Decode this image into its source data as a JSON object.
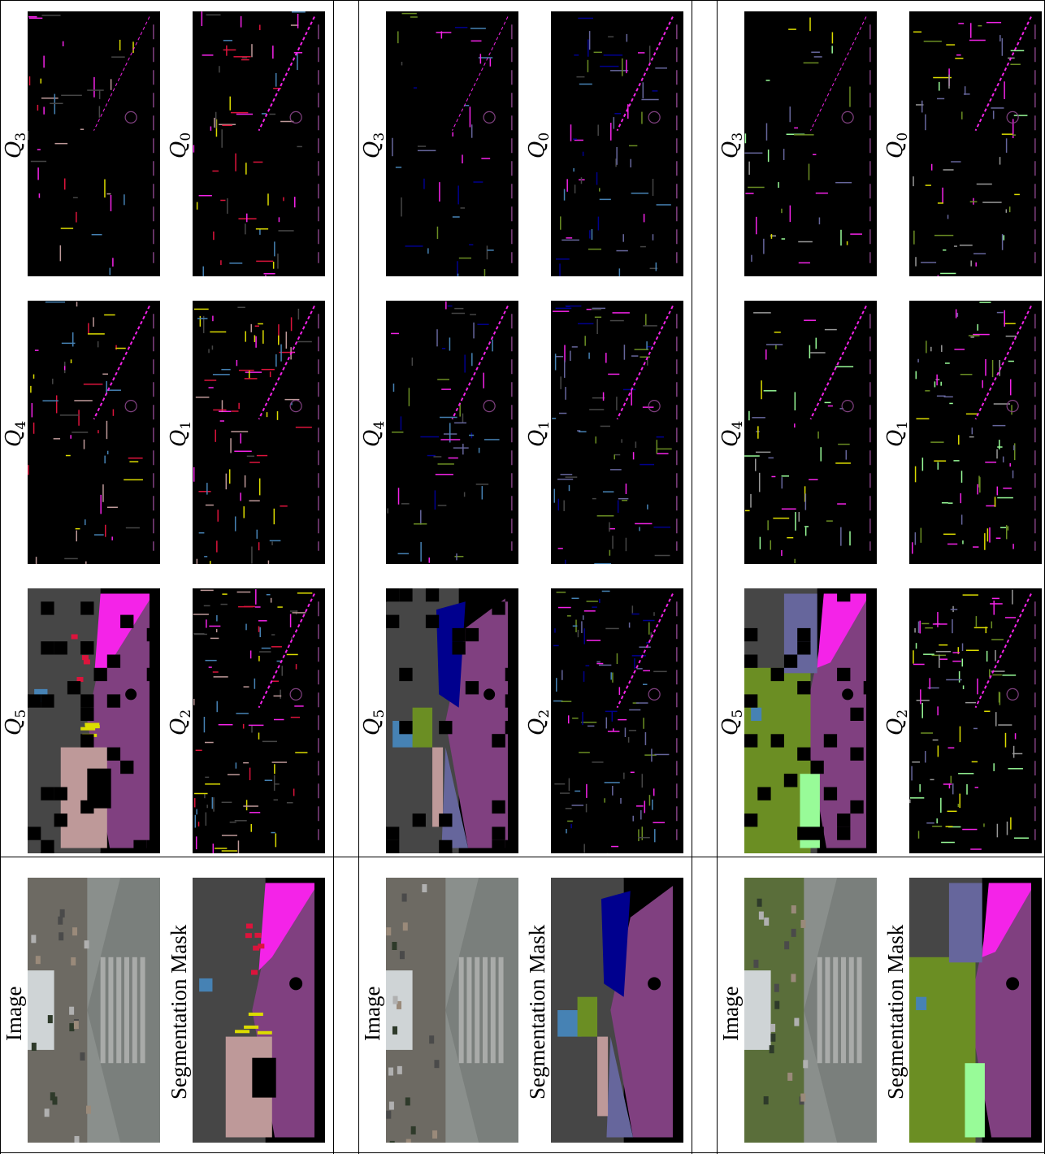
{
  "columns": [
    {
      "image_label": "Image",
      "mask_label": "Segmentation Mask",
      "q_labels": [
        {
          "letter": "Q",
          "sub": "5"
        },
        {
          "letter": "Q",
          "sub": "4"
        },
        {
          "letter": "Q",
          "sub": "3"
        },
        {
          "letter": "Q",
          "sub": "2"
        },
        {
          "letter": "Q",
          "sub": "1"
        },
        {
          "letter": "Q",
          "sub": "0"
        }
      ]
    },
    {
      "image_label": "Image",
      "mask_label": "Segmentation Mask",
      "q_labels": [
        {
          "letter": "Q",
          "sub": "5"
        },
        {
          "letter": "Q",
          "sub": "4"
        },
        {
          "letter": "Q",
          "sub": "3"
        },
        {
          "letter": "Q",
          "sub": "2"
        },
        {
          "letter": "Q",
          "sub": "1"
        },
        {
          "letter": "Q",
          "sub": "0"
        }
      ]
    },
    {
      "image_label": "Image",
      "mask_label": "Segmentation Mask",
      "q_labels": [
        {
          "letter": "Q",
          "sub": "5"
        },
        {
          "letter": "Q",
          "sub": "4"
        },
        {
          "letter": "Q",
          "sub": "3"
        },
        {
          "letter": "Q",
          "sub": "2"
        },
        {
          "letter": "Q",
          "sub": "1"
        },
        {
          "letter": "Q",
          "sub": "0"
        }
      ]
    }
  ],
  "palette": {
    "road": "#804080",
    "sidewalk": "#f423e8",
    "building": "#464646",
    "wall": "#66669c",
    "vegetation": "#6b8e23",
    "terrain": "#98fb98",
    "sky": "#4682b4",
    "person": "#dc143c",
    "car": "#00008e",
    "sign": "#dcdc00",
    "light": "#faaa1e",
    "pole": "#999999",
    "fence": "#be9999",
    "photo_sky": "#cfd4d6",
    "photo_road": "#8a8f8c",
    "photo_building": "#6d6a63",
    "photo_tree": "#5a6e3a"
  }
}
